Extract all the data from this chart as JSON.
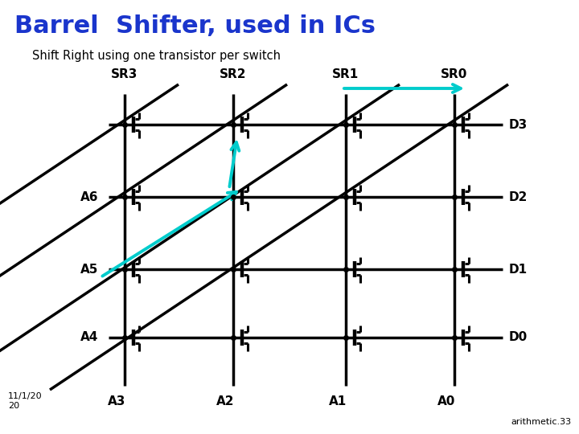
{
  "title": "Barrel  Shifter, used in ICs",
  "subtitle": "Shift Right using one transistor per switch",
  "title_color": "#1a35cc",
  "subtitle_color": "#000000",
  "bg_color": "#ffffff",
  "grid_color": "#000000",
  "transistor_color": "#000000",
  "diagonal_color": "#000000",
  "arrow_color": "#00cccc",
  "col_labels": [
    "SR3",
    "SR2",
    "SR1",
    "SR0"
  ],
  "row_labels_left": [
    "A6",
    "A5",
    "A4"
  ],
  "row_labels_bottom": [
    "A3",
    "A2",
    "A1",
    "A0"
  ],
  "output_labels": [
    "D3",
    "D2",
    "D1",
    "D0"
  ],
  "date_text": "11/1/20\n20",
  "ref_text": "arithmetic.33",
  "lw": 2.2
}
